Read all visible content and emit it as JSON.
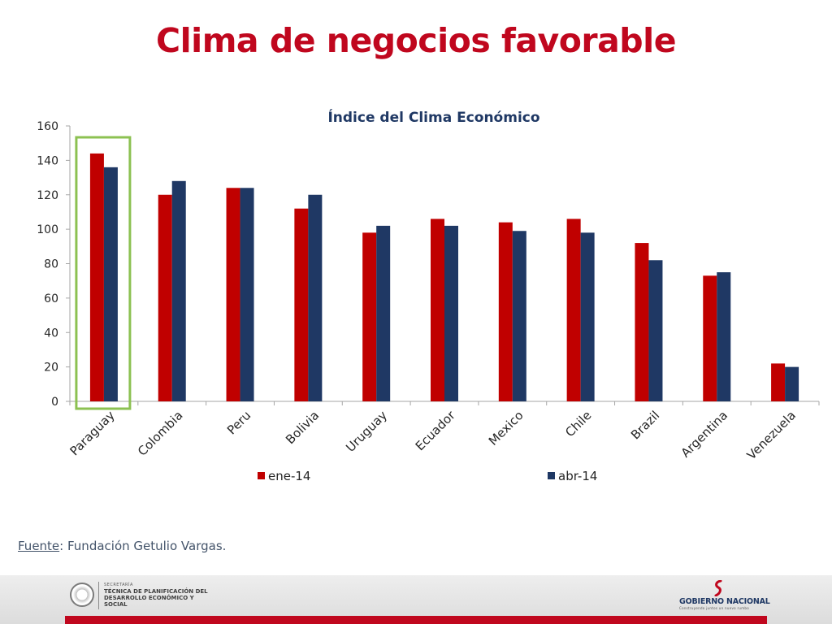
{
  "slide": {
    "title": "Clima de negocios favorable",
    "source_label": "Fuente",
    "source_text": ": Fundación Getulio Vargas."
  },
  "footer": {
    "secretaria_small": "SECRETARÍA",
    "secretaria_name": "TÉCNICA DE PLANIFICACIÓN DEL DESARROLLO ECONÓMICO Y SOCIAL",
    "gobierno_name": "GOBIERNO NACIONAL",
    "gobierno_tagline": "Construyendo juntos un nuevo rumbo",
    "accent_color": "#c0071e"
  },
  "chart_data": {
    "type": "bar",
    "title": "Índice del Clima Económico",
    "categories": [
      "Paraguay",
      "Colombia",
      "Peru",
      "Bolivia",
      "Uruguay",
      "Ecuador",
      "Mexico",
      "Chile",
      "Brazil",
      "Argentina",
      "Venezuela"
    ],
    "series": [
      {
        "name": "ene-14",
        "color": "#c00000",
        "values": [
          144,
          120,
          124,
          112,
          98,
          106,
          104,
          106,
          92,
          73,
          22
        ]
      },
      {
        "name": "abr-14",
        "color": "#1f3864",
        "values": [
          136,
          128,
          124,
          120,
          102,
          102,
          99,
          98,
          82,
          75,
          20
        ]
      }
    ],
    "ylim": [
      0,
      160
    ],
    "yticks": [
      0,
      20,
      40,
      60,
      80,
      100,
      120,
      140,
      160
    ],
    "grid": false,
    "legend": "bottom",
    "highlight": {
      "category": "Paraguay",
      "color": "#8cc152"
    }
  }
}
